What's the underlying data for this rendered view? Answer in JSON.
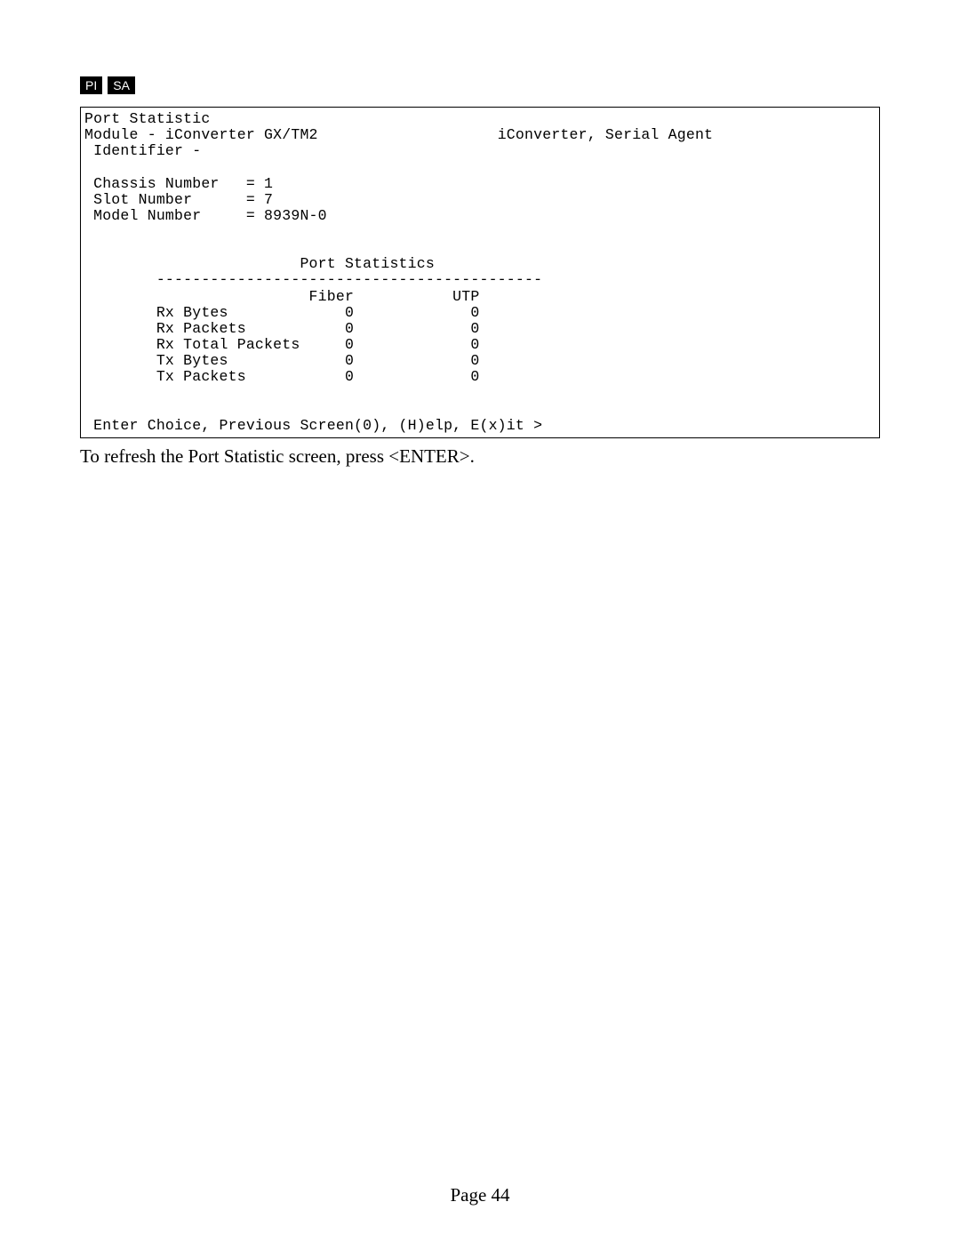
{
  "badges": {
    "pi": "PI",
    "sa": "SA"
  },
  "terminal": {
    "title": "Port Statistic",
    "module_label": "Module - iConverter GX/TM2",
    "agent": "iConverter, Serial Agent",
    "identifier_label": " Identifier -",
    "chassis_line": " Chassis Number   = 1",
    "slot_line": " Slot Number      = 7",
    "model_line": " Model Number     = 8939N-0",
    "stats_header": "                        Port Statistics",
    "stats_divider": "        -------------------------------------------",
    "col_header": "                         Fiber           UTP",
    "rows": {
      "rx_bytes": "        Rx Bytes             0             0",
      "rx_packets": "        Rx Packets           0             0",
      "rx_total_packets": "        Rx Total Packets     0             0",
      "tx_bytes": "        Tx Bytes             0             0",
      "tx_packets": "        Tx Packets           0             0"
    },
    "prompt": " Enter Choice, Previous Screen(0), (H)elp, E(x)it >"
  },
  "body_text": "To refresh the Port Statistic screen, press <ENTER>.",
  "page_number": "Page 44"
}
